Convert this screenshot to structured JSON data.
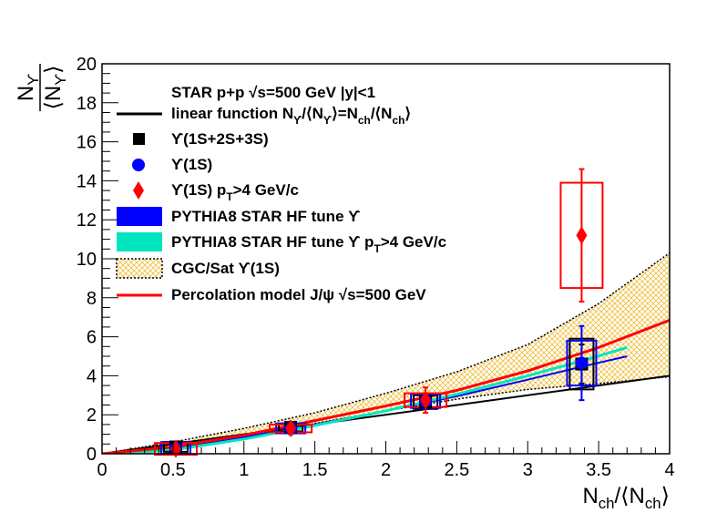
{
  "chart_data": {
    "type": "scatter",
    "xlabel": "N_ch/⟨N_ch⟩",
    "ylabel_num": "N_ϒ",
    "ylabel_den": "⟨N_ϒ⟩",
    "xlim": [
      0,
      4
    ],
    "ylim": [
      0,
      20
    ],
    "x_ticks": [
      "0",
      "0.5",
      "1",
      "1.5",
      "2",
      "2.5",
      "3",
      "3.5",
      "4"
    ],
    "y_ticks": [
      "0",
      "2",
      "4",
      "6",
      "8",
      "10",
      "12",
      "14",
      "16",
      "18",
      "20"
    ],
    "grid": false,
    "legend_position": "top-left",
    "legend_header": "STAR p+p   √s=500 GeV |y|<1",
    "legend": [
      "linear function N_ϒ/⟨N_ϒ⟩=N_ch/⟨N_ch⟩",
      "ϒ(1S+2S+3S)",
      "ϒ(1S)",
      "ϒ(1S) p_T>4 GeV/c",
      "PYTHIA8 STAR HF tune   ϒ",
      "PYTHIA8 STAR HF tune   ϒ p_T>4 GeV/c",
      "CGC/Sat   ϒ(1S)",
      "Percolation model J/ψ    √s=500 GeV"
    ],
    "series": [
      {
        "name": "ϒ(1S+2S+3S)",
        "marker": "square",
        "color": "#000000",
        "x": [
          0.52,
          1.33,
          2.28,
          3.38
        ],
        "y": [
          0.35,
          1.35,
          2.65,
          4.6
        ],
        "yerr": [
          0.1,
          0.15,
          0.3,
          1.0
        ],
        "sys_box": [
          0.25,
          0.2,
          0.35,
          1.3
        ]
      },
      {
        "name": "ϒ(1S)",
        "marker": "circle",
        "color": "#0000ff",
        "x": [
          0.52,
          1.33,
          2.28,
          3.38
        ],
        "y": [
          0.3,
          1.3,
          2.7,
          4.65
        ],
        "yerr": [
          0.15,
          0.2,
          0.4,
          1.9
        ],
        "sys_box": [
          0.3,
          0.25,
          0.35,
          1.15
        ]
      },
      {
        "name": "ϒ(1S) p_T>4 GeV/c",
        "marker": "diamond",
        "color": "#ff0000",
        "x": [
          0.52,
          1.33,
          2.28,
          3.38
        ],
        "y": [
          0.25,
          1.3,
          2.75,
          11.2
        ],
        "yerr": [
          0.3,
          0.3,
          0.65,
          3.4
        ],
        "sys_box": [
          0.3,
          0.2,
          0.35,
          2.7
        ]
      }
    ],
    "models": [
      {
        "name": "linear",
        "color": "#000000",
        "x": [
          0,
          4
        ],
        "y": [
          0,
          4
        ]
      },
      {
        "name": "PYTHIA8 ϒ",
        "color": "#0000ff",
        "x": [
          0.1,
          0.5,
          1.0,
          1.5,
          2.0,
          2.5,
          3.0,
          3.4,
          3.7
        ],
        "y": [
          0.05,
          0.3,
          0.85,
          1.5,
          2.2,
          2.95,
          3.8,
          4.5,
          5.0
        ]
      },
      {
        "name": "PYTHIA8 ϒ p_T>4 GeV/c",
        "color": "#00e5c0",
        "x": [
          0.1,
          0.5,
          1.0,
          1.5,
          2.0,
          2.5,
          3.0,
          3.4,
          3.7
        ],
        "y": [
          0.0,
          0.2,
          0.75,
          1.45,
          2.2,
          3.05,
          4.0,
          4.8,
          5.45
        ]
      },
      {
        "name": "Percolation model J/ψ",
        "color": "#ff0000",
        "x": [
          0,
          0.5,
          1.0,
          1.5,
          2.0,
          2.5,
          3.0,
          3.5,
          4.0
        ],
        "y": [
          0.0,
          0.35,
          0.95,
          1.7,
          2.45,
          3.25,
          4.25,
          5.45,
          6.85
        ]
      }
    ],
    "cgc_band": {
      "name": "CGC/Sat ϒ(1S)",
      "color": "#f0c040",
      "x": [
        0,
        0.5,
        1.0,
        1.5,
        2.0,
        2.5,
        3.0,
        3.5,
        4.0
      ],
      "y_low": [
        0.0,
        0.3,
        0.9,
        1.55,
        2.2,
        2.8,
        3.3,
        3.6,
        3.95
      ],
      "y_high": [
        0.0,
        0.6,
        1.3,
        2.1,
        3.1,
        4.2,
        5.6,
        7.7,
        10.3
      ]
    }
  }
}
